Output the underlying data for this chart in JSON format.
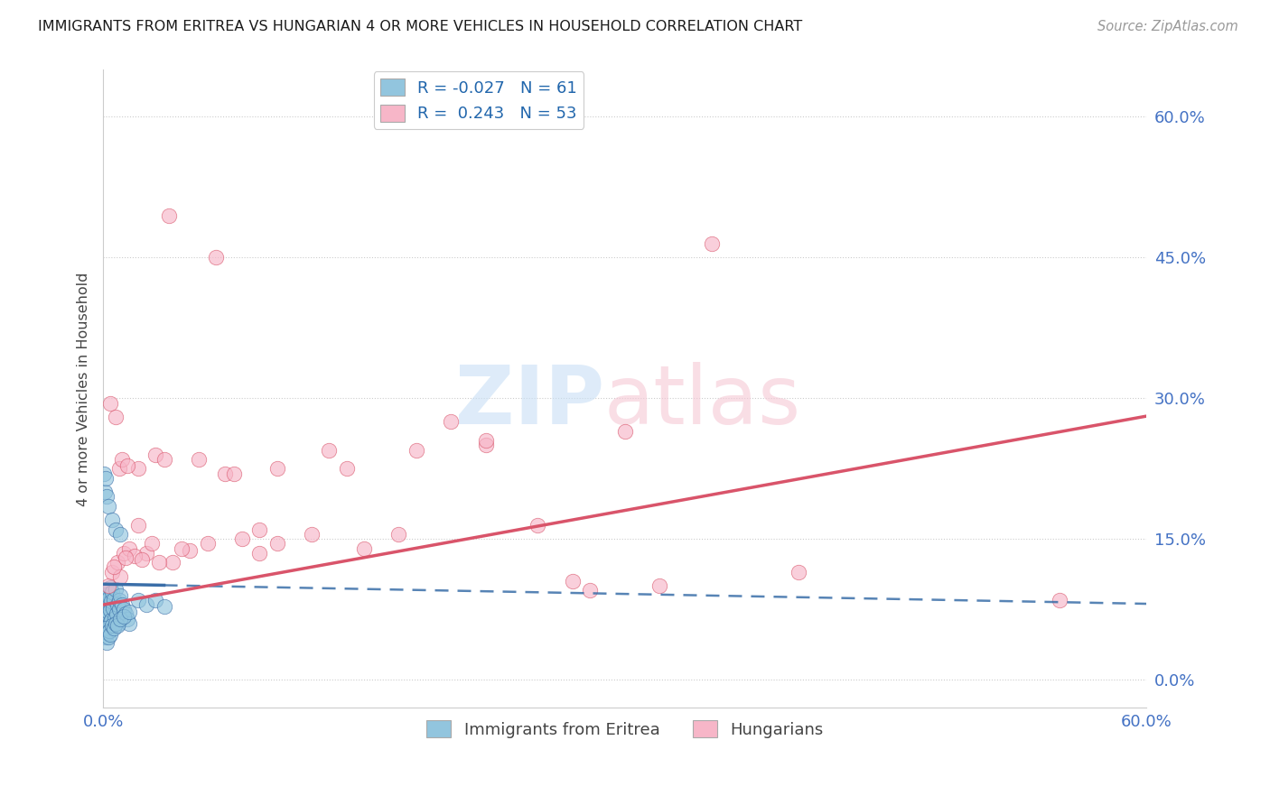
{
  "title": "IMMIGRANTS FROM ERITREA VS HUNGARIAN 4 OR MORE VEHICLES IN HOUSEHOLD CORRELATION CHART",
  "source": "Source: ZipAtlas.com",
  "ylabel": "4 or more Vehicles in Household",
  "ytick_vals": [
    0.0,
    15.0,
    30.0,
    45.0,
    60.0
  ],
  "ytick_labels": [
    "0.0%",
    "15.0%",
    "30.0%",
    "45.0%",
    "60.0%"
  ],
  "xrange": [
    0.0,
    60.0
  ],
  "yrange": [
    -3.0,
    65.0
  ],
  "blue_color": "#92c5de",
  "pink_color": "#f7b6c8",
  "blue_line_color": "#3a6ea8",
  "pink_line_color": "#d9546a",
  "blue_scatter_x": [
    0.05,
    0.08,
    0.1,
    0.12,
    0.15,
    0.18,
    0.2,
    0.22,
    0.25,
    0.28,
    0.3,
    0.32,
    0.35,
    0.38,
    0.4,
    0.42,
    0.45,
    0.48,
    0.5,
    0.55,
    0.6,
    0.65,
    0.7,
    0.75,
    0.8,
    0.85,
    0.9,
    0.95,
    1.0,
    1.1,
    1.2,
    1.3,
    1.4,
    1.5,
    0.05,
    0.1,
    0.15,
    0.2,
    0.25,
    0.3,
    0.35,
    0.4,
    0.5,
    0.6,
    0.7,
    0.8,
    1.0,
    1.2,
    1.5,
    2.0,
    2.5,
    3.0,
    3.5,
    0.05,
    0.1,
    0.2,
    0.3,
    0.5,
    0.7,
    1.0,
    0.15
  ],
  "blue_scatter_y": [
    8.0,
    7.5,
    9.0,
    7.0,
    8.5,
    6.5,
    9.5,
    7.8,
    8.2,
    6.8,
    9.2,
    7.2,
    8.8,
    6.2,
    9.8,
    7.4,
    8.4,
    6.4,
    9.4,
    7.6,
    8.6,
    6.6,
    9.6,
    7.0,
    8.0,
    6.0,
    7.5,
    8.5,
    9.0,
    8.0,
    7.5,
    7.0,
    6.5,
    6.0,
    5.0,
    4.5,
    5.5,
    4.0,
    5.0,
    4.5,
    5.2,
    4.8,
    5.8,
    5.5,
    6.0,
    5.8,
    6.5,
    6.8,
    7.2,
    8.5,
    8.0,
    8.5,
    7.8,
    22.0,
    20.0,
    19.5,
    18.5,
    17.0,
    16.0,
    15.5,
    21.5
  ],
  "pink_scatter_x": [
    0.3,
    0.5,
    0.8,
    1.0,
    1.2,
    1.5,
    2.0,
    2.5,
    3.0,
    3.5,
    4.0,
    5.0,
    6.0,
    7.0,
    8.0,
    9.0,
    10.0,
    12.0,
    13.0,
    15.0,
    18.0,
    20.0,
    22.0,
    25.0,
    28.0,
    30.0,
    35.0,
    40.0,
    55.0,
    0.4,
    0.6,
    0.9,
    1.1,
    1.4,
    1.8,
    2.2,
    2.8,
    3.2,
    4.5,
    5.5,
    7.5,
    10.0,
    14.0,
    17.0,
    22.0,
    27.0,
    32.0,
    0.7,
    1.3,
    2.0,
    3.8,
    6.5,
    9.0
  ],
  "pink_scatter_y": [
    10.0,
    11.5,
    12.5,
    11.0,
    13.5,
    14.0,
    22.5,
    13.5,
    24.0,
    23.5,
    12.5,
    13.8,
    14.5,
    22.0,
    15.0,
    16.0,
    22.5,
    15.5,
    24.5,
    14.0,
    24.5,
    27.5,
    25.0,
    16.5,
    9.5,
    26.5,
    46.5,
    11.5,
    8.5,
    29.5,
    12.0,
    22.5,
    23.5,
    22.8,
    13.2,
    12.8,
    14.5,
    12.5,
    14.0,
    23.5,
    22.0,
    14.5,
    22.5,
    15.5,
    25.5,
    10.5,
    10.0,
    28.0,
    13.0,
    16.5,
    49.5,
    45.0,
    13.5
  ],
  "blue_trend_intercept": 10.2,
  "blue_trend_slope": -0.035,
  "blue_solid_end": 3.5,
  "pink_trend_intercept": 8.0,
  "pink_trend_slope": 0.335,
  "grid_color": "#cccccc",
  "axis_label_color": "#4472c4",
  "title_color": "#1a1a1a",
  "source_color": "#999999"
}
